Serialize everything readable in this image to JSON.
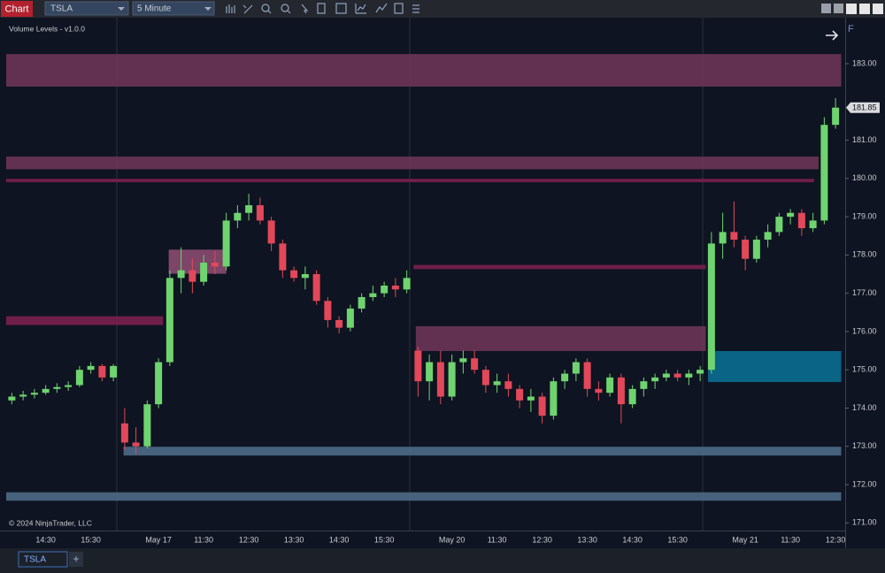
{
  "toolbar": {
    "chart_button": "Chart",
    "instrument": "TSLA",
    "interval": "5 Minute"
  },
  "indicator_label": "Volume Levels - v1.0.0",
  "copyright": "© 2024 NinjaTrader, LLC",
  "corner_label": "F",
  "tabs": [
    "TSLA"
  ],
  "add_tab": "+",
  "chart_data": {
    "type": "candlestick",
    "categories": [
      null,
      null,
      null,
      "14:30",
      null,
      null,
      null,
      "15:30",
      null,
      null,
      null,
      null,
      null,
      "May 17",
      null,
      null,
      null,
      "11:30",
      null,
      null,
      null,
      "12:30",
      null,
      null,
      null,
      "13:30",
      null,
      null,
      null,
      "14:30",
      null,
      null,
      null,
      "15:30",
      null,
      null,
      null,
      null,
      null,
      "May 20",
      null,
      null,
      null,
      "11:30",
      null,
      null,
      null,
      "12:30",
      null,
      null,
      null,
      "13:30",
      null,
      null,
      null,
      "14:30",
      null,
      null,
      null,
      "15:30",
      null,
      null,
      null,
      null,
      null,
      "May 21",
      null,
      null,
      null,
      "11:30",
      null,
      null,
      null,
      "12:30"
    ],
    "open": [
      174.2,
      174.3,
      174.35,
      174.4,
      174.5,
      174.55,
      174.6,
      175.0,
      175.1,
      174.8,
      173.6,
      173.1,
      173.0,
      174.1,
      175.2,
      177.4,
      177.6,
      177.3,
      177.8,
      177.7,
      178.9,
      179.1,
      179.3,
      178.9,
      178.3,
      177.6,
      177.4,
      177.5,
      176.8,
      176.3,
      176.1,
      176.6,
      176.9,
      177.0,
      177.2,
      177.1,
      175.5,
      174.7,
      175.2,
      174.3,
      175.2,
      175.3,
      175.0,
      174.6,
      174.7,
      174.5,
      174.2,
      174.3,
      173.8,
      174.7,
      174.9,
      175.2,
      174.5,
      174.4,
      174.8,
      174.1,
      174.5,
      174.7,
      174.8,
      174.9,
      174.8,
      174.9,
      175.0,
      178.3,
      178.6,
      178.4,
      177.9,
      178.4,
      178.6,
      179.0,
      179.1,
      178.7,
      178.9,
      181.4
    ],
    "high": [
      174.4,
      174.45,
      174.5,
      174.6,
      174.65,
      174.7,
      175.1,
      175.2,
      175.15,
      175.15,
      174.0,
      173.5,
      174.2,
      175.3,
      177.6,
      178.2,
      177.9,
      178.0,
      178.1,
      179.1,
      179.3,
      179.6,
      179.5,
      179.0,
      178.4,
      177.7,
      177.7,
      177.6,
      176.9,
      176.4,
      176.7,
      177.0,
      177.2,
      177.3,
      177.4,
      177.6,
      175.6,
      175.4,
      175.5,
      175.4,
      175.5,
      175.5,
      175.1,
      174.9,
      174.9,
      174.6,
      174.5,
      174.4,
      174.8,
      175.0,
      175.3,
      175.3,
      174.7,
      174.9,
      174.9,
      174.6,
      174.8,
      174.9,
      175.0,
      175.0,
      175.0,
      175.1,
      178.6,
      179.1,
      179.4,
      178.5,
      178.5,
      178.8,
      179.1,
      179.2,
      179.2,
      179.1,
      181.6,
      182.1
    ],
    "low": [
      174.1,
      174.2,
      174.25,
      174.35,
      174.4,
      174.45,
      174.55,
      174.9,
      174.7,
      174.7,
      172.9,
      172.8,
      172.95,
      174.0,
      175.1,
      177.0,
      177.0,
      177.2,
      177.5,
      177.6,
      178.7,
      178.9,
      178.8,
      178.1,
      177.4,
      177.3,
      177.1,
      176.7,
      176.1,
      175.95,
      176.0,
      176.5,
      176.8,
      176.9,
      176.9,
      177.0,
      174.3,
      174.2,
      174.1,
      174.2,
      174.9,
      174.9,
      174.4,
      174.4,
      174.3,
      174.0,
      173.9,
      173.6,
      173.7,
      174.5,
      174.7,
      174.3,
      174.2,
      174.3,
      173.6,
      174.0,
      174.3,
      174.5,
      174.7,
      174.7,
      174.6,
      174.7,
      174.9,
      177.9,
      178.2,
      177.6,
      177.8,
      178.2,
      178.5,
      178.8,
      178.5,
      178.6,
      178.8,
      181.3
    ],
    "close": [
      174.3,
      174.35,
      174.4,
      174.5,
      174.55,
      174.6,
      175.0,
      175.1,
      174.8,
      175.1,
      173.1,
      173.0,
      174.1,
      175.2,
      177.4,
      177.6,
      177.3,
      177.8,
      177.7,
      178.9,
      179.1,
      179.3,
      178.9,
      178.3,
      177.6,
      177.4,
      177.5,
      176.8,
      176.3,
      176.1,
      176.6,
      176.9,
      177.0,
      177.2,
      177.1,
      177.4,
      174.7,
      175.2,
      174.3,
      175.2,
      175.3,
      175.0,
      174.6,
      174.7,
      174.5,
      174.2,
      174.3,
      173.8,
      174.7,
      174.9,
      175.2,
      174.5,
      174.4,
      174.8,
      174.1,
      174.5,
      174.7,
      174.8,
      174.9,
      174.8,
      174.9,
      175.0,
      178.3,
      178.6,
      178.4,
      177.9,
      178.4,
      178.6,
      179.0,
      179.1,
      178.7,
      178.9,
      181.4,
      181.85
    ],
    "up_color": "#6fd46f",
    "down_color": "#e2485a",
    "zones": [
      {
        "top": 183.25,
        "bottom": 182.4,
        "start": 0,
        "end": 74,
        "color": "#6b3458"
      },
      {
        "top": 180.57,
        "bottom": 180.24,
        "start": 0,
        "end": 72,
        "color": "#6b3458"
      },
      {
        "top": 179.99,
        "bottom": 179.9,
        "start": 0,
        "end": 71.6,
        "color": "#7a1f4e"
      },
      {
        "top": 176.4,
        "bottom": 176.17,
        "start": 0,
        "end": 13.9,
        "color": "#7a1f4e"
      },
      {
        "top": 178.14,
        "bottom": 177.51,
        "start": 14.4,
        "end": 19.5,
        "color": "#8a4a70"
      },
      {
        "top": 177.74,
        "bottom": 177.63,
        "start": 36.1,
        "end": 62,
        "color": "#7a1f4e"
      },
      {
        "top": 176.14,
        "bottom": 175.49,
        "start": 36.3,
        "end": 62,
        "color": "#6b3458"
      },
      {
        "top": 175.49,
        "bottom": 174.68,
        "start": 62.2,
        "end": 74,
        "color": "#0a6d91"
      },
      {
        "top": 172.99,
        "bottom": 172.76,
        "start": 10.4,
        "end": 74,
        "color": "#4d6a86"
      },
      {
        "top": 171.8,
        "bottom": 171.58,
        "start": 0,
        "end": 74,
        "color": "#4d6a86"
      }
    ],
    "ylim": [
      170.8,
      184.2
    ],
    "yticks": [
      {
        "value": 171,
        "label": "171.00"
      },
      {
        "value": 172,
        "label": "172.00"
      },
      {
        "value": 173,
        "label": "173.00"
      },
      {
        "value": 174,
        "label": "174.00"
      },
      {
        "value": 175,
        "label": "175.00"
      },
      {
        "value": 176,
        "label": "176.00"
      },
      {
        "value": 177,
        "label": "177.00"
      },
      {
        "value": 178,
        "label": "178.00"
      },
      {
        "value": 179,
        "label": "179.00"
      },
      {
        "value": 180,
        "label": "180.00"
      },
      {
        "value": 181,
        "label": "181.00"
      },
      {
        "value": 183,
        "label": "183.00"
      }
    ]
  }
}
